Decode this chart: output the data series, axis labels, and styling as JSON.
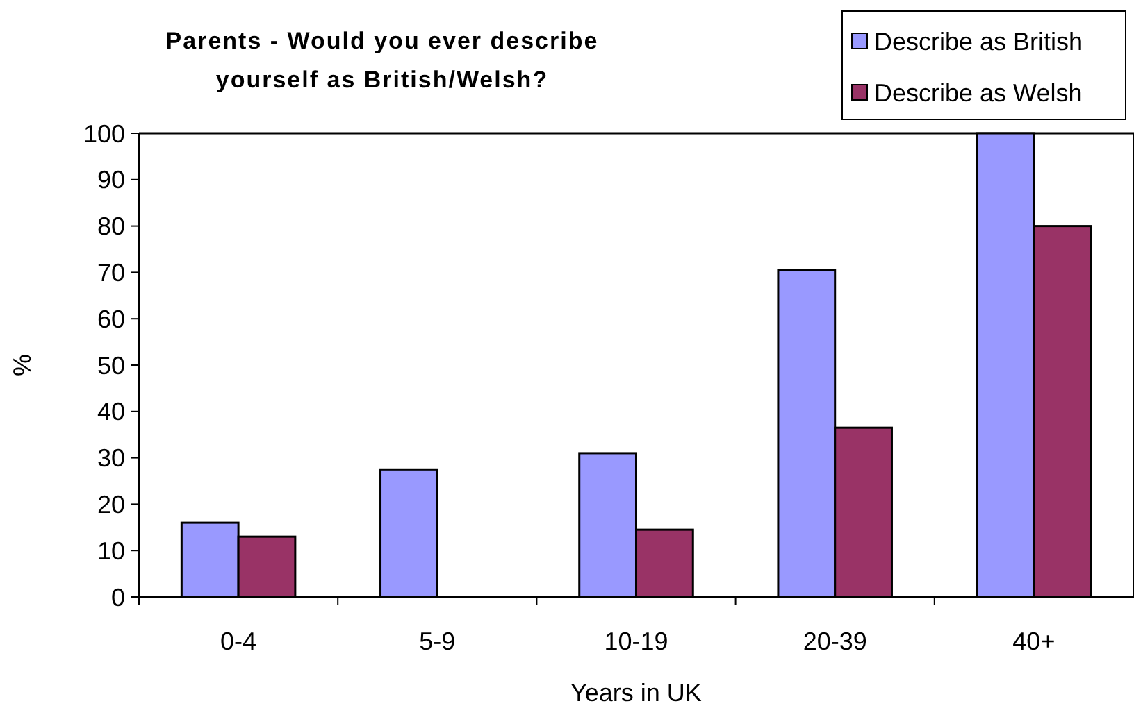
{
  "chart_data": {
    "type": "bar",
    "title": "Parents - Would you ever describe yourself as British/Welsh?",
    "xlabel": "Years in UK",
    "ylabel": "%",
    "categories": [
      "0-4",
      "5-9",
      "10-19",
      "20-39",
      "40+"
    ],
    "series": [
      {
        "name": "Describe as British",
        "color": "#9999ff",
        "values": [
          16,
          27.5,
          31,
          70.5,
          100
        ]
      },
      {
        "name": "Describe as Welsh",
        "color": "#993366",
        "values": [
          13,
          null,
          14.5,
          36.5,
          80
        ]
      }
    ],
    "ylim": [
      0,
      100
    ],
    "yticks": [
      0,
      10,
      20,
      30,
      40,
      50,
      60,
      70,
      80,
      90,
      100
    ],
    "legend": "top right"
  }
}
